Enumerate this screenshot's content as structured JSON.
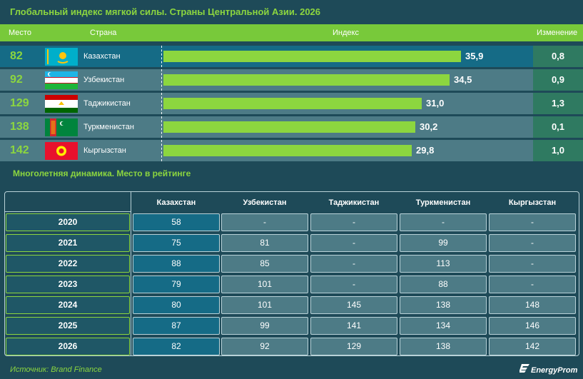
{
  "title": "Глобальный индекс мягкой силы. Страны Центральной Азии. 2026",
  "header": {
    "place": "Место",
    "country": "Страна",
    "index": "Индекс",
    "change": "Изменение"
  },
  "colors": {
    "accent": "#8cd63f",
    "header_bg": "#78c93a",
    "bg": "#1e4a58",
    "row_kz": "#156b86",
    "row_alt": "#4d7b86",
    "change_bg": "#2f7a61"
  },
  "chart_data": [
    {
      "type": "bar",
      "title": "Глобальный индекс мягкой силы. Страны Центральной Азии. 2026",
      "categories": [
        "Казахстан",
        "Узбекистан",
        "Таджикистан",
        "Туркменистан",
        "Кыргызстан"
      ],
      "ranks": [
        "82",
        "92",
        "129",
        "138",
        "142"
      ],
      "values": [
        35.9,
        34.5,
        31.0,
        30.2,
        29.8
      ],
      "value_labels": [
        "35,9",
        "34,5",
        "31,0",
        "30,2",
        "29,8"
      ],
      "changes": [
        "0,8",
        "0,9",
        "1,3",
        "0,1",
        "1,0"
      ],
      "flags": [
        "kazakhstan-flag",
        "uzbekistan-flag",
        "tajikistan-flag",
        "turkmenistan-flag",
        "kyrgyzstan-flag"
      ],
      "xlim": [
        0,
        40
      ]
    },
    {
      "type": "table",
      "title": "Многолетняя динамика. Место в рейтинге",
      "columns": [
        "Казахстан",
        "Узбекистан",
        "Таджикистан",
        "Туркменистан",
        "Кыргызстан"
      ],
      "rows": [
        {
          "year": "2020",
          "cells": [
            "58",
            "-",
            "-",
            "-",
            "-"
          ]
        },
        {
          "year": "2021",
          "cells": [
            "75",
            "81",
            "-",
            "99",
            "-"
          ]
        },
        {
          "year": "2022",
          "cells": [
            "88",
            "85",
            "-",
            "113",
            "-"
          ]
        },
        {
          "year": "2023",
          "cells": [
            "79",
            "101",
            "-",
            "88",
            "-"
          ]
        },
        {
          "year": "2024",
          "cells": [
            "80",
            "101",
            "145",
            "138",
            "148"
          ]
        },
        {
          "year": "2025",
          "cells": [
            "87",
            "99",
            "141",
            "134",
            "146"
          ]
        },
        {
          "year": "2026",
          "cells": [
            "82",
            "92",
            "129",
            "138",
            "142"
          ]
        }
      ]
    }
  ],
  "source": "Источник: Brand Finance",
  "logo": "EnergyProm"
}
